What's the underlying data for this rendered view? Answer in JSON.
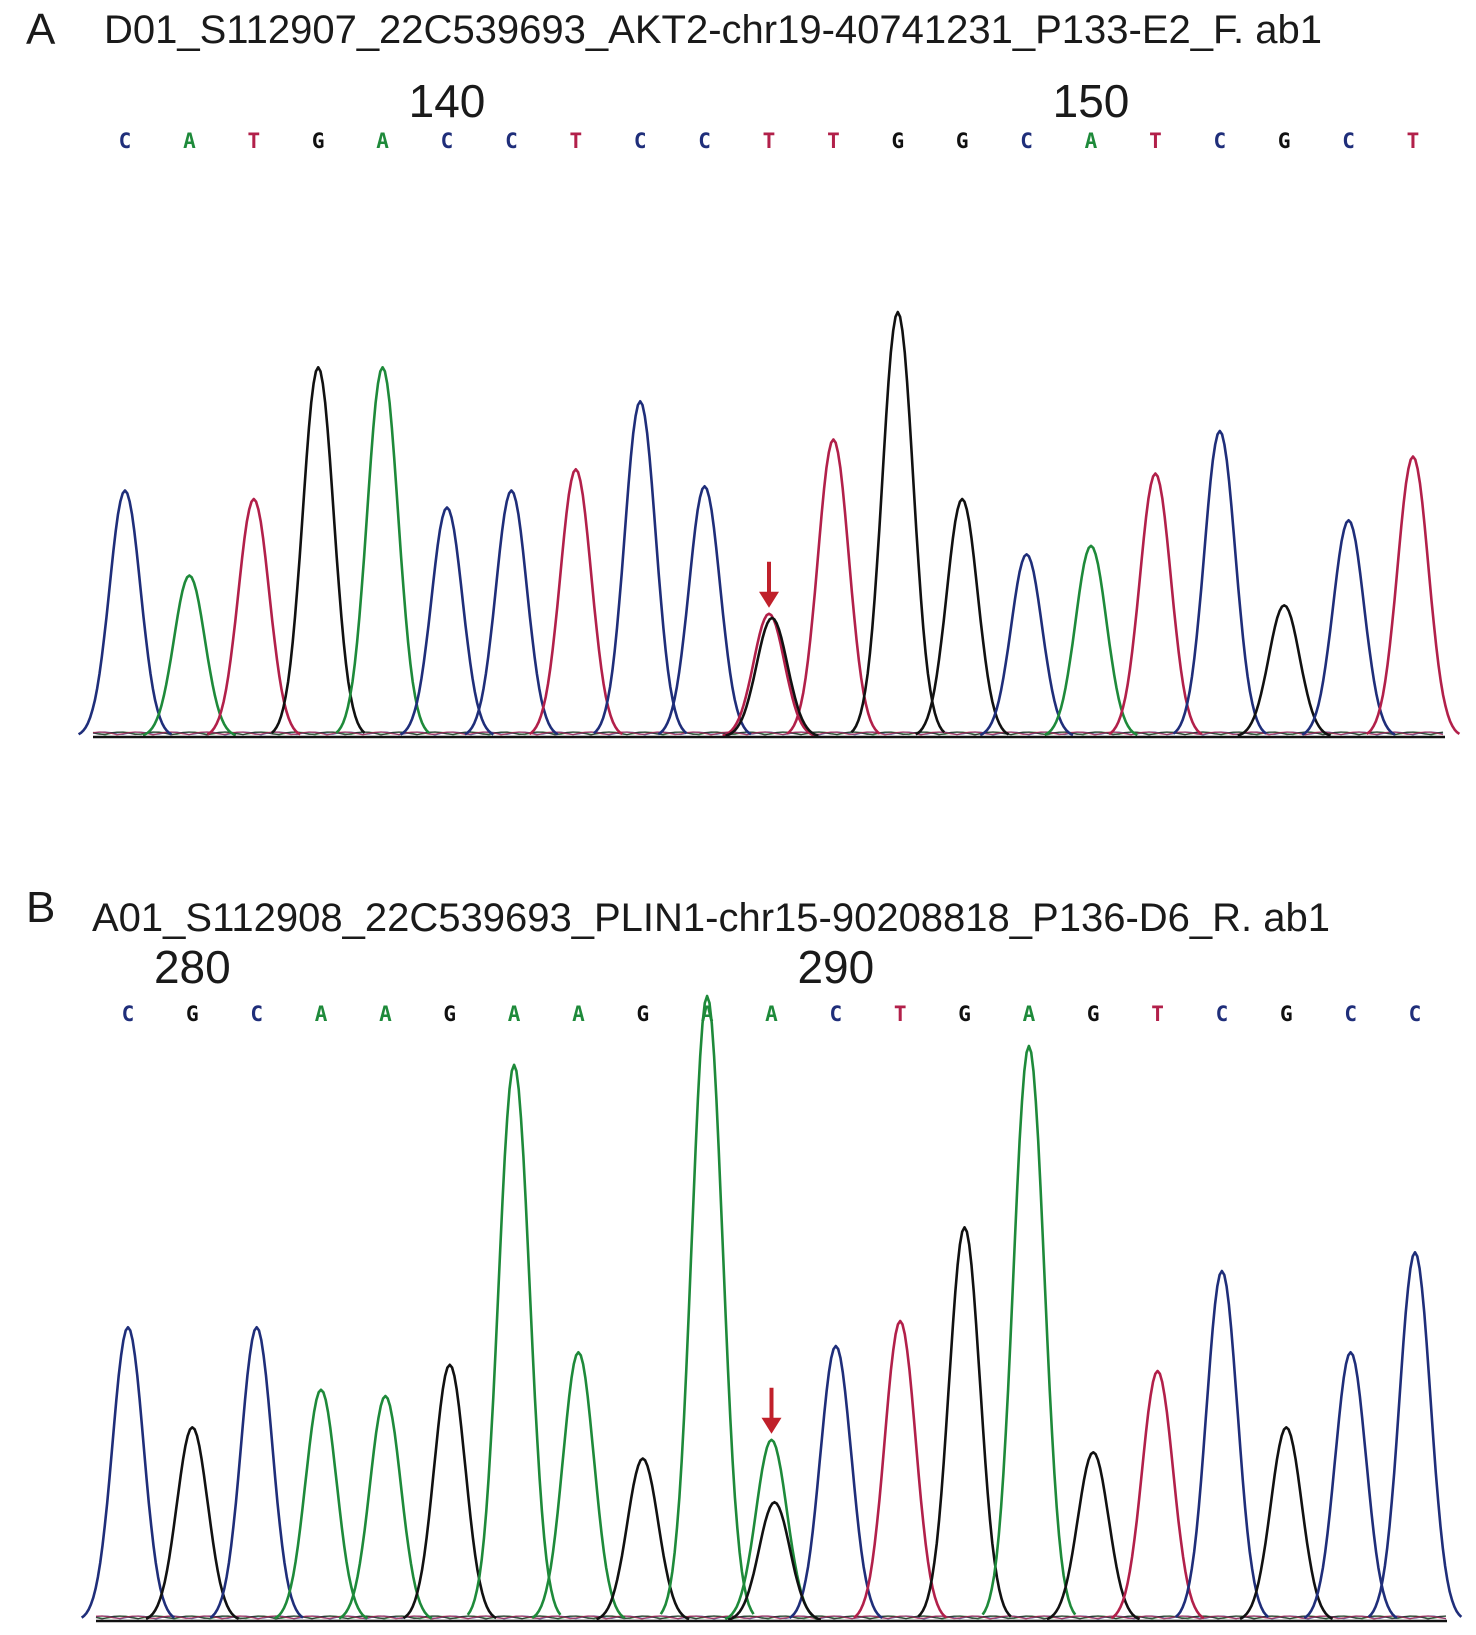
{
  "colors": {
    "A": "#1e8a3a",
    "C": "#1f2e7a",
    "G": "#111111",
    "T": "#b2204a",
    "mutation_arrow": "#c0202a"
  },
  "chart_data": [
    {
      "type": "line",
      "panel_letter": "A",
      "title": "D01_S112907_22C539693_AKT2-chr19-40741231_P133-E2_F. ab1",
      "position_labels": [
        {
          "label": "140",
          "at_base_index": 5
        },
        {
          "label": "150",
          "at_base_index": 15
        }
      ],
      "bases": [
        "C",
        "A",
        "T",
        "G",
        "A",
        "C",
        "C",
        "T",
        "C",
        "C",
        "T",
        "T",
        "G",
        "G",
        "C",
        "A",
        "T",
        "C",
        "G",
        "C",
        "T"
      ],
      "peak_heights": [
        0.58,
        0.38,
        0.56,
        0.87,
        0.87,
        0.54,
        0.58,
        0.63,
        0.79,
        0.59,
        0.29,
        0.7,
        1.0,
        0.56,
        0.43,
        0.45,
        0.62,
        0.72,
        0.31,
        0.51,
        0.66
      ],
      "secondary_peaks": [
        {
          "base_index": 10,
          "base": "G",
          "height": 0.28
        }
      ],
      "mutation_marker_base_index": 10,
      "y_unit": "relative signal intensity",
      "ylim": [
        0,
        1
      ]
    },
    {
      "type": "line",
      "panel_letter": "B",
      "title": "A01_S112908_22C539693_PLIN1-chr15-90208818_P136-D6_R. ab1",
      "position_labels": [
        {
          "label": "280",
          "at_base_index": 1
        },
        {
          "label": "290",
          "at_base_index": 11
        }
      ],
      "bases": [
        "C",
        "G",
        "C",
        "A",
        "A",
        "G",
        "A",
        "A",
        "G",
        "A",
        "A",
        "C",
        "T",
        "G",
        "A",
        "G",
        "T",
        "C",
        "G",
        "C",
        "C"
      ],
      "peak_heights": [
        0.47,
        0.31,
        0.47,
        0.37,
        0.36,
        0.41,
        0.89,
        0.43,
        0.26,
        1.0,
        0.29,
        0.44,
        0.48,
        0.63,
        0.92,
        0.27,
        0.4,
        0.56,
        0.31,
        0.43,
        0.59
      ],
      "secondary_peaks": [
        {
          "base_index": 10,
          "base": "G",
          "height": 0.19
        }
      ],
      "mutation_marker_base_index": 10,
      "y_unit": "relative signal intensity",
      "ylim": [
        0,
        1
      ]
    }
  ]
}
